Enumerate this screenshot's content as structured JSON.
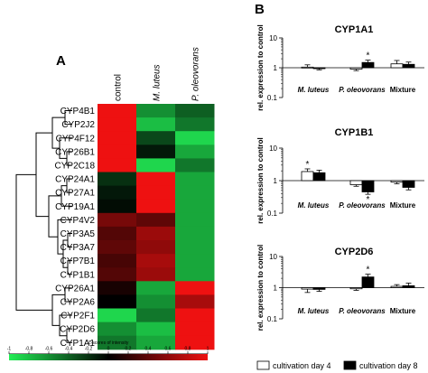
{
  "chart_data": [
    {
      "type": "heatmap",
      "panel_label": "A",
      "columns": [
        "control",
        "M. luteus",
        "P. oleovorans"
      ],
      "rows": [
        "CYP4B1",
        "CYP2J2",
        "CYP4F12",
        "CYP26B1",
        "CYP2C18",
        "CYP24A1",
        "CYP27A1",
        "CYP19A1",
        "CYP4V2",
        "CYP3A5",
        "CYP3A7",
        "CYP7B1",
        "CYP1B1",
        "CYP26A1",
        "CYP2A6",
        "CYP2F1",
        "CYP2D6",
        "CYP1A1"
      ],
      "values": [
        [
          1.0,
          -0.6,
          -0.4
        ],
        [
          1.0,
          -0.8,
          -0.5
        ],
        [
          1.0,
          -0.3,
          -0.9
        ],
        [
          1.0,
          -0.1,
          -0.7
        ],
        [
          1.0,
          -0.9,
          -0.5
        ],
        [
          -0.2,
          1.0,
          -0.7
        ],
        [
          -0.1,
          1.0,
          -0.7
        ],
        [
          -0.05,
          1.0,
          -0.7
        ],
        [
          0.5,
          0.4,
          -0.7
        ],
        [
          0.35,
          0.65,
          -0.7
        ],
        [
          0.4,
          0.6,
          -0.7
        ],
        [
          0.3,
          0.7,
          -0.7
        ],
        [
          0.35,
          0.65,
          -0.7
        ],
        [
          0.1,
          -0.7,
          1.0
        ],
        [
          0.0,
          -0.6,
          0.7
        ],
        [
          -0.9,
          -0.5,
          1.0
        ],
        [
          -0.6,
          -0.8,
          1.0
        ],
        [
          -0.5,
          -0.7,
          1.0
        ]
      ],
      "colorbar": {
        "title": "Z-scores of intensity",
        "ticks": [
          "-1",
          "-0,8",
          "-0,6",
          "-0,4",
          "-0,2",
          "0",
          "0,2",
          "0,4",
          "0,6",
          "0,8",
          "1"
        ],
        "colors": {
          "low": "#22ee55",
          "mid": "#000000",
          "high": "#ee1111"
        }
      }
    },
    {
      "type": "bar",
      "panel_label": "B",
      "title": "CYP1A1",
      "ylabel": "rel. expression to control",
      "yscale": "log",
      "ylim": [
        0.1,
        10
      ],
      "yticks": [
        "10",
        "1",
        "0.1"
      ],
      "categories": [
        "M. luteus",
        "P. oleovorans",
        "Mixture"
      ],
      "series": [
        {
          "name": "cultivation day 4",
          "values": [
            1.05,
            0.9,
            1.35
          ],
          "errors": [
            0.2,
            0.1,
            0.4
          ]
        },
        {
          "name": "cultivation day 8",
          "values": [
            0.95,
            1.5,
            1.3
          ],
          "errors": [
            0.1,
            0.3,
            0.25
          ]
        }
      ],
      "annotations": [
        {
          "category": 1,
          "series": 1,
          "text": "*"
        }
      ]
    },
    {
      "type": "bar",
      "title": "CYP1B1",
      "ylabel": "rel. expression to control",
      "yscale": "log",
      "ylim": [
        0.1,
        10
      ],
      "yticks": [
        "10",
        "1",
        "0.1"
      ],
      "categories": [
        "M. luteus",
        "P. oleovorans",
        "Mixture"
      ],
      "series": [
        {
          "name": "cultivation day 4",
          "values": [
            1.9,
            0.75,
            0.9
          ],
          "errors": [
            0.4,
            0.08,
            0.1
          ]
        },
        {
          "name": "cultivation day 8",
          "values": [
            1.75,
            0.45,
            0.62
          ],
          "errors": [
            0.35,
            0.07,
            0.1
          ]
        }
      ],
      "annotations": [
        {
          "category": 0,
          "series": 0,
          "text": "*"
        },
        {
          "category": 1,
          "series": 1,
          "text": "*"
        }
      ]
    },
    {
      "type": "bar",
      "title": "CYP2D6",
      "ylabel": "rel. expression to control",
      "yscale": "log",
      "ylim": [
        0.1,
        10
      ],
      "yticks": [
        "10",
        "1",
        "0.1"
      ],
      "categories": [
        "M. luteus",
        "P. oleovorans",
        "Mixture"
      ],
      "series": [
        {
          "name": "cultivation day 4",
          "values": [
            0.9,
            0.92,
            1.1
          ],
          "errors": [
            0.2,
            0.1,
            0.15
          ]
        },
        {
          "name": "cultivation day 8",
          "values": [
            0.88,
            2.2,
            1.15
          ],
          "errors": [
            0.12,
            0.5,
            0.25
          ]
        }
      ],
      "annotations": [
        {
          "category": 1,
          "series": 1,
          "text": "*"
        }
      ]
    }
  ],
  "legend": {
    "items": [
      "cultivation day 4",
      "cultivation day 8"
    ],
    "colors": [
      "#ffffff",
      "#000000"
    ]
  }
}
